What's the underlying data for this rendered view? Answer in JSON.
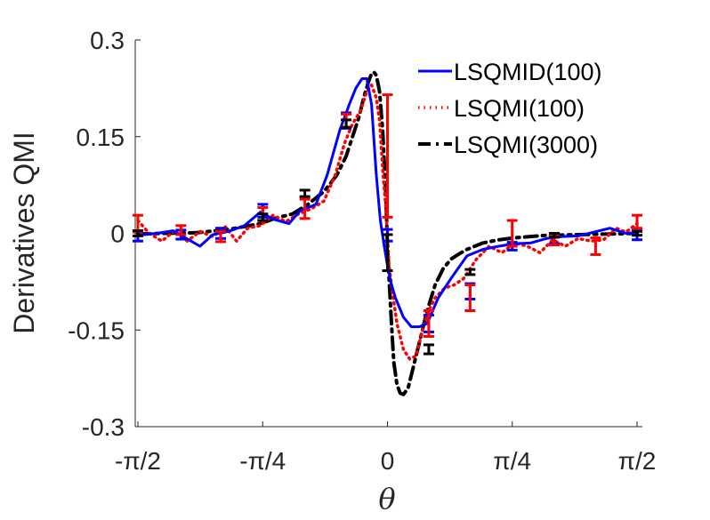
{
  "chart_data": {
    "type": "line",
    "title": "",
    "xlabel": "θ",
    "ylabel": "Derivatives QMI",
    "xlim": [
      -1.5708,
      1.5708
    ],
    "ylim": [
      -0.3,
      0.3
    ],
    "grid": false,
    "legend_position": "top-right",
    "xticks": [
      {
        "value": -1.5708,
        "label": "-π/2"
      },
      {
        "value": -0.7854,
        "label": "-π/4"
      },
      {
        "value": 0,
        "label": "0"
      },
      {
        "value": 0.7854,
        "label": "π/4"
      },
      {
        "value": 1.5708,
        "label": "π/2"
      }
    ],
    "yticks": [
      {
        "value": 0.3,
        "label": "0.3"
      },
      {
        "value": 0.15,
        "label": "0.15"
      },
      {
        "value": 0,
        "label": "0"
      },
      {
        "value": -0.15,
        "label": "-0.15"
      },
      {
        "value": -0.3,
        "label": "-0.3"
      }
    ],
    "series": [
      {
        "name": "LSQMID(100)",
        "color": "#0000ff",
        "style": "solid",
        "x": [
          -1.571,
          -1.45,
          -1.35,
          -1.25,
          -1.18,
          -1.1,
          -1.0,
          -0.9,
          -0.8,
          -0.72,
          -0.62,
          -0.55,
          -0.45,
          -0.38,
          -0.3,
          -0.24,
          -0.2,
          -0.16,
          -0.13,
          -0.1,
          -0.07,
          -0.045,
          -0.02,
          0.0,
          0.02,
          0.05,
          0.1,
          0.15,
          0.2,
          0.25,
          0.32,
          0.4,
          0.5,
          0.6,
          0.7,
          0.8,
          0.9,
          1.0,
          1.1,
          1.2,
          1.3,
          1.4,
          1.5,
          1.571
        ],
        "y": [
          -0.003,
          0.0,
          0.004,
          -0.01,
          -0.02,
          -0.002,
          0.003,
          0.012,
          0.033,
          0.022,
          0.015,
          0.035,
          0.045,
          0.09,
          0.16,
          0.2,
          0.225,
          0.24,
          0.24,
          0.2,
          0.09,
          0.02,
          -0.02,
          -0.05,
          -0.075,
          -0.1,
          -0.13,
          -0.145,
          -0.145,
          -0.14,
          -0.1,
          -0.07,
          -0.035,
          -0.025,
          -0.02,
          -0.016,
          -0.015,
          -0.008,
          -0.005,
          -0.004,
          0.002,
          0.008,
          0.0,
          0.0
        ]
      },
      {
        "name": "LSQMI(100)",
        "color": "#ff0000",
        "style": "dotted",
        "x": [
          -1.571,
          -1.5,
          -1.42,
          -1.34,
          -1.26,
          -1.18,
          -1.1,
          -1.02,
          -0.95,
          -0.88,
          -0.8,
          -0.72,
          -0.64,
          -0.56,
          -0.48,
          -0.4,
          -0.33,
          -0.27,
          -0.22,
          -0.17,
          -0.13,
          -0.1,
          -0.07,
          -0.05,
          -0.03,
          -0.01,
          0.01,
          0.03,
          0.06,
          0.1,
          0.14,
          0.18,
          0.22,
          0.26,
          0.3,
          0.36,
          0.42,
          0.48,
          0.56,
          0.64,
          0.72,
          0.8,
          0.88,
          0.96,
          1.04,
          1.12,
          1.2,
          1.28,
          1.36,
          1.44,
          1.5,
          1.571
        ],
        "y": [
          0.02,
          0.0,
          -0.012,
          0.004,
          -0.012,
          0.003,
          -0.005,
          0.01,
          -0.012,
          0.008,
          0.012,
          0.028,
          0.018,
          0.03,
          0.038,
          0.05,
          0.09,
          0.14,
          0.17,
          0.19,
          0.22,
          0.23,
          0.21,
          0.175,
          0.1,
          0.04,
          -0.05,
          -0.09,
          -0.14,
          -0.18,
          -0.195,
          -0.19,
          -0.15,
          -0.12,
          -0.1,
          -0.085,
          -0.08,
          -0.07,
          -0.04,
          -0.02,
          -0.03,
          -0.015,
          -0.02,
          -0.03,
          -0.01,
          -0.02,
          -0.008,
          -0.012,
          -0.01,
          0.008,
          0.002,
          0.015
        ]
      },
      {
        "name": "LSQMI(3000)",
        "color": "#000000",
        "style": "dashdot",
        "x": [
          -1.571,
          -1.4,
          -1.2,
          -1.0,
          -0.8,
          -0.7,
          -0.6,
          -0.5,
          -0.4,
          -0.32,
          -0.26,
          -0.22,
          -0.18,
          -0.15,
          -0.12,
          -0.1,
          -0.085,
          -0.07,
          -0.05,
          -0.03,
          -0.01,
          0.0,
          0.01,
          0.025,
          0.04,
          0.06,
          0.08,
          0.1,
          0.13,
          0.16,
          0.2,
          0.25,
          0.3,
          0.35,
          0.4,
          0.45,
          0.5,
          0.6,
          0.7,
          0.8,
          0.9,
          1.0,
          1.2,
          1.4,
          1.571
        ],
        "y": [
          -0.001,
          0.0,
          0.001,
          0.006,
          0.015,
          0.024,
          0.03,
          0.045,
          0.065,
          0.09,
          0.12,
          0.15,
          0.18,
          0.21,
          0.235,
          0.248,
          0.25,
          0.245,
          0.22,
          0.16,
          0.06,
          -0.02,
          -0.07,
          -0.14,
          -0.2,
          -0.235,
          -0.248,
          -0.25,
          -0.24,
          -0.21,
          -0.17,
          -0.12,
          -0.08,
          -0.055,
          -0.04,
          -0.032,
          -0.025,
          -0.015,
          -0.01,
          -0.007,
          -0.005,
          -0.003,
          -0.002,
          -0.001,
          0.0
        ]
      }
    ],
    "error_bars": [
      {
        "series": "LSQMID(100)",
        "color": "#0000ff",
        "points": [
          {
            "x": -1.571,
            "y": -0.004,
            "err": 0.008
          },
          {
            "x": -1.3,
            "y": -0.002,
            "err": 0.007
          },
          {
            "x": -1.05,
            "y": 0.0,
            "err": 0.008
          },
          {
            "x": -0.785,
            "y": 0.035,
            "err": 0.01
          },
          {
            "x": -0.26,
            "y": 0.175,
            "err": 0.012
          },
          {
            "x": 0.0,
            "y": -0.003,
            "err": 0.009
          },
          {
            "x": 0.26,
            "y": -0.14,
            "err": 0.013
          },
          {
            "x": 0.52,
            "y": -0.09,
            "err": 0.012
          },
          {
            "x": 0.785,
            "y": -0.02,
            "err": 0.006
          },
          {
            "x": 1.05,
            "y": -0.01,
            "err": 0.006
          },
          {
            "x": 1.571,
            "y": -0.003,
            "err": 0.007
          }
        ]
      },
      {
        "series": "LSQMI(100)",
        "color": "#ff0000",
        "points": [
          {
            "x": -1.571,
            "y": 0.015,
            "err": 0.013
          },
          {
            "x": -1.3,
            "y": 0.005,
            "err": 0.007
          },
          {
            "x": -1.05,
            "y": -0.005,
            "err": 0.008
          },
          {
            "x": -0.785,
            "y": 0.03,
            "err": 0.01
          },
          {
            "x": -0.52,
            "y": 0.038,
            "err": 0.015
          },
          {
            "x": -0.26,
            "y": 0.175,
            "err": 0.01
          },
          {
            "x": 0.0,
            "y": 0.12,
            "err": 0.095
          },
          {
            "x": 0.26,
            "y": -0.14,
            "err": 0.02
          },
          {
            "x": 0.52,
            "y": -0.1,
            "err": 0.02
          },
          {
            "x": 0.785,
            "y": 0.0,
            "err": 0.02
          },
          {
            "x": 1.05,
            "y": -0.01,
            "err": 0.008
          },
          {
            "x": 1.31,
            "y": -0.02,
            "err": 0.013
          },
          {
            "x": 1.571,
            "y": 0.018,
            "err": 0.01
          }
        ]
      },
      {
        "series": "LSQMI(3000)",
        "color": "#000000",
        "points": [
          {
            "x": -1.571,
            "y": 0.0,
            "err": 0.004
          },
          {
            "x": -0.785,
            "y": 0.025,
            "err": 0.005
          },
          {
            "x": -0.52,
            "y": 0.062,
            "err": 0.005
          },
          {
            "x": -0.26,
            "y": 0.17,
            "err": 0.006
          },
          {
            "x": 0.0,
            "y": -0.03,
            "err": 0.028
          },
          {
            "x": 0.26,
            "y": -0.18,
            "err": 0.007
          },
          {
            "x": 0.52,
            "y": -0.06,
            "err": 0.004
          },
          {
            "x": 1.05,
            "y": -0.003,
            "err": 0.003
          },
          {
            "x": 1.571,
            "y": 0.0,
            "err": 0.003
          }
        ]
      }
    ]
  }
}
